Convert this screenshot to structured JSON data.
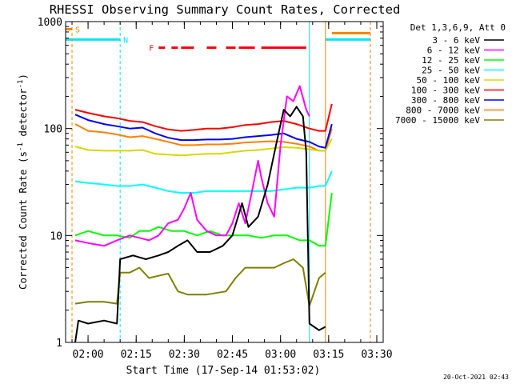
{
  "chart_data": {
    "type": "line",
    "title": "RHESSI Observing Summary Count Rates, Corrected",
    "xlabel": "Start Time (17-Sep-14 01:53:02)",
    "ylabel": "Corrected Count Rate (s⁻¹ detector⁻¹)",
    "ylabel_parts": [
      "Corrected Count Rate (s",
      "-1",
      " detector",
      "-1",
      ")"
    ],
    "y_scale": "log",
    "ylim": [
      1,
      1000
    ],
    "y_ticks": [
      1,
      10,
      100,
      1000
    ],
    "y_tick_labels": [
      "1",
      "10",
      "100",
      "1000"
    ],
    "xlim": [
      "01:53",
      "03:32"
    ],
    "x_ticks": [
      "02:00",
      "02:15",
      "02:30",
      "02:45",
      "03:00",
      "03:15",
      "03:30"
    ],
    "legend_title": "Det 1,3,6,9, Att 0",
    "legend_position": "right",
    "flags": [
      {
        "label": "S",
        "color": "#ff8000",
        "level": 850,
        "start": "01:53",
        "end": "01:55"
      },
      {
        "label": "N",
        "color": "#00e5ff",
        "level": 680,
        "start": "01:53",
        "end": "02:10"
      },
      {
        "label": "F",
        "color": "#ff0000",
        "level": 570,
        "segments": [
          [
            "02:22",
            "02:24"
          ],
          [
            "02:26",
            "02:28"
          ],
          [
            "02:29",
            "02:33"
          ],
          [
            "02:37",
            "02:40"
          ],
          [
            "02:43",
            "02:46"
          ],
          [
            "02:47",
            "02:52"
          ],
          [
            "02:54",
            "03:08"
          ]
        ]
      },
      {
        "label": "",
        "color": "#00e5ff",
        "level": 680,
        "start": "03:14",
        "end": "03:28"
      },
      {
        "label": "",
        "color": "#ff8000",
        "level": 780,
        "start": "03:16",
        "end": "03:28"
      }
    ],
    "vlines": [
      {
        "time": "01:55",
        "color": "#ff8000",
        "style": "dashed"
      },
      {
        "time": "02:10",
        "color": "#00e5ff",
        "style": "dashed"
      },
      {
        "time": "03:09",
        "color": "#00e5ff",
        "style": "solid"
      },
      {
        "time": "03:14",
        "color": "#ff8000",
        "style": "solid"
      },
      {
        "time": "03:28",
        "color": "#00e5ff",
        "style": "dashed"
      },
      {
        "time": "03:28",
        "color": "#ff8000",
        "style": "dashed"
      }
    ],
    "series": [
      {
        "name": "3 - 6 keV",
        "color": "#000000",
        "points": [
          [
            "01:56",
            1.0
          ],
          [
            "01:57",
            1.6
          ],
          [
            "02:00",
            1.5
          ],
          [
            "02:05",
            1.6
          ],
          [
            "02:09",
            1.5
          ],
          [
            "02:10",
            6
          ],
          [
            "02:14",
            6.5
          ],
          [
            "02:18",
            6
          ],
          [
            "02:22",
            6.5
          ],
          [
            "02:25",
            7
          ],
          [
            "02:28",
            8
          ],
          [
            "02:31",
            9
          ],
          [
            "02:34",
            7
          ],
          [
            "02:38",
            7
          ],
          [
            "02:42",
            8
          ],
          [
            "02:45",
            10
          ],
          [
            "02:48",
            20
          ],
          [
            "02:50",
            12
          ],
          [
            "02:53",
            15
          ],
          [
            "02:56",
            30
          ],
          [
            "02:59",
            80
          ],
          [
            "03:01",
            150
          ],
          [
            "03:03",
            130
          ],
          [
            "03:05",
            160
          ],
          [
            "03:07",
            130
          ],
          [
            "03:08",
            60
          ],
          [
            "03:09",
            1.5
          ],
          [
            "03:12",
            1.3
          ],
          [
            "03:14",
            1.4
          ]
        ]
      },
      {
        "name": "6 - 12 keV",
        "color": "#ff00ff",
        "points": [
          [
            "01:56",
            9
          ],
          [
            "02:00",
            8.5
          ],
          [
            "02:05",
            8
          ],
          [
            "02:09",
            9
          ],
          [
            "02:13",
            10
          ],
          [
            "02:16",
            9.5
          ],
          [
            "02:19",
            9
          ],
          [
            "02:22",
            10
          ],
          [
            "02:25",
            13
          ],
          [
            "02:28",
            14
          ],
          [
            "02:30",
            18
          ],
          [
            "02:32",
            25
          ],
          [
            "02:34",
            14
          ],
          [
            "02:37",
            11
          ],
          [
            "02:40",
            10
          ],
          [
            "02:43",
            10
          ],
          [
            "02:45",
            13
          ],
          [
            "02:47",
            20
          ],
          [
            "02:49",
            13
          ],
          [
            "02:51",
            25
          ],
          [
            "02:53",
            50
          ],
          [
            "02:54",
            35
          ],
          [
            "02:56",
            20
          ],
          [
            "02:58",
            15
          ],
          [
            "03:00",
            70
          ],
          [
            "03:02",
            200
          ],
          [
            "03:04",
            180
          ],
          [
            "03:06",
            250
          ],
          [
            "03:08",
            150
          ],
          [
            "03:09",
            130
          ]
        ]
      },
      {
        "name": "12 - 25 keV",
        "color": "#00ff00",
        "points": [
          [
            "01:56",
            10
          ],
          [
            "02:00",
            11
          ],
          [
            "02:05",
            10
          ],
          [
            "02:09",
            10
          ],
          [
            "02:13",
            9.5
          ],
          [
            "02:16",
            11
          ],
          [
            "02:19",
            11
          ],
          [
            "02:22",
            12
          ],
          [
            "02:26",
            11
          ],
          [
            "02:30",
            11
          ],
          [
            "02:34",
            10
          ],
          [
            "02:38",
            11
          ],
          [
            "02:42",
            10
          ],
          [
            "02:46",
            10
          ],
          [
            "02:50",
            10
          ],
          [
            "02:54",
            9.5
          ],
          [
            "02:58",
            10
          ],
          [
            "03:02",
            10
          ],
          [
            "03:06",
            9
          ],
          [
            "03:09",
            9
          ],
          [
            "03:12",
            8
          ],
          [
            "03:14",
            8
          ],
          [
            "03:16",
            25
          ]
        ]
      },
      {
        "name": "25 - 50 keV",
        "color": "#00ffff",
        "points": [
          [
            "01:56",
            32
          ],
          [
            "02:00",
            31
          ],
          [
            "02:05",
            30
          ],
          [
            "02:09",
            29
          ],
          [
            "02:13",
            29
          ],
          [
            "02:17",
            30
          ],
          [
            "02:21",
            28
          ],
          [
            "02:25",
            26
          ],
          [
            "02:29",
            25
          ],
          [
            "02:33",
            25
          ],
          [
            "02:37",
            26
          ],
          [
            "02:41",
            26
          ],
          [
            "02:45",
            26
          ],
          [
            "02:49",
            26
          ],
          [
            "02:53",
            26
          ],
          [
            "02:57",
            26
          ],
          [
            "03:01",
            27
          ],
          [
            "03:05",
            28
          ],
          [
            "03:09",
            28
          ],
          [
            "03:12",
            29
          ],
          [
            "03:14",
            29
          ],
          [
            "03:16",
            40
          ]
        ]
      },
      {
        "name": "50 - 100 keV",
        "color": "#d8d800",
        "points": [
          [
            "01:56",
            68
          ],
          [
            "02:00",
            63
          ],
          [
            "02:05",
            62
          ],
          [
            "02:09",
            62
          ],
          [
            "02:13",
            62
          ],
          [
            "02:17",
            63
          ],
          [
            "02:21",
            58
          ],
          [
            "02:25",
            57
          ],
          [
            "02:29",
            56
          ],
          [
            "02:33",
            57
          ],
          [
            "02:37",
            58
          ],
          [
            "02:41",
            58
          ],
          [
            "02:45",
            60
          ],
          [
            "02:49",
            62
          ],
          [
            "02:53",
            63
          ],
          [
            "02:57",
            65
          ],
          [
            "03:01",
            67
          ],
          [
            "03:05",
            66
          ],
          [
            "03:09",
            64
          ],
          [
            "03:12",
            62
          ],
          [
            "03:14",
            62
          ],
          [
            "03:16",
            80
          ]
        ]
      },
      {
        "name": "100 - 300 keV",
        "color": "#ff0000",
        "points": [
          [
            "01:56",
            150
          ],
          [
            "02:00",
            140
          ],
          [
            "02:05",
            130
          ],
          [
            "02:09",
            125
          ],
          [
            "02:13",
            118
          ],
          [
            "02:17",
            115
          ],
          [
            "02:21",
            105
          ],
          [
            "02:25",
            98
          ],
          [
            "02:29",
            95
          ],
          [
            "02:33",
            97
          ],
          [
            "02:37",
            100
          ],
          [
            "02:41",
            100
          ],
          [
            "02:45",
            103
          ],
          [
            "02:49",
            108
          ],
          [
            "02:53",
            110
          ],
          [
            "02:57",
            115
          ],
          [
            "03:01",
            118
          ],
          [
            "03:05",
            110
          ],
          [
            "03:09",
            100
          ],
          [
            "03:12",
            95
          ],
          [
            "03:14",
            95
          ],
          [
            "03:16",
            170
          ]
        ]
      },
      {
        "name": "300 - 800 keV",
        "color": "#0000ff",
        "points": [
          [
            "01:56",
            135
          ],
          [
            "02:00",
            120
          ],
          [
            "02:05",
            110
          ],
          [
            "02:09",
            105
          ],
          [
            "02:13",
            100
          ],
          [
            "02:17",
            102
          ],
          [
            "02:21",
            90
          ],
          [
            "02:25",
            82
          ],
          [
            "02:29",
            78
          ],
          [
            "02:33",
            78
          ],
          [
            "02:37",
            79
          ],
          [
            "02:41",
            79
          ],
          [
            "02:45",
            80
          ],
          [
            "02:49",
            83
          ],
          [
            "02:53",
            85
          ],
          [
            "02:57",
            87
          ],
          [
            "03:01",
            90
          ],
          [
            "03:05",
            80
          ],
          [
            "03:09",
            75
          ],
          [
            "03:12",
            68
          ],
          [
            "03:14",
            66
          ],
          [
            "03:16",
            110
          ]
        ]
      },
      {
        "name": "800 - 7000 keV",
        "color": "#ff8000",
        "points": [
          [
            "01:56",
            110
          ],
          [
            "02:00",
            95
          ],
          [
            "02:05",
            92
          ],
          [
            "02:09",
            88
          ],
          [
            "02:13",
            83
          ],
          [
            "02:17",
            85
          ],
          [
            "02:21",
            80
          ],
          [
            "02:25",
            75
          ],
          [
            "02:29",
            70
          ],
          [
            "02:33",
            70
          ],
          [
            "02:37",
            71
          ],
          [
            "02:41",
            71
          ],
          [
            "02:45",
            72
          ],
          [
            "02:49",
            74
          ],
          [
            "02:53",
            75
          ],
          [
            "02:57",
            76
          ],
          [
            "03:01",
            75
          ],
          [
            "03:05",
            72
          ],
          [
            "03:09",
            68
          ],
          [
            "03:12",
            62
          ],
          [
            "03:14",
            62
          ],
          [
            "03:16",
            100
          ]
        ]
      },
      {
        "name": "7000 - 15000 keV",
        "color": "#808000",
        "points": [
          [
            "01:56",
            2.3
          ],
          [
            "02:00",
            2.4
          ],
          [
            "02:05",
            2.4
          ],
          [
            "02:09",
            2.3
          ],
          [
            "02:10",
            4.5
          ],
          [
            "02:13",
            4.5
          ],
          [
            "02:16",
            5
          ],
          [
            "02:19",
            4
          ],
          [
            "02:22",
            4.2
          ],
          [
            "02:25",
            4.4
          ],
          [
            "02:28",
            3
          ],
          [
            "02:31",
            2.8
          ],
          [
            "02:34",
            2.8
          ],
          [
            "02:37",
            2.8
          ],
          [
            "02:40",
            2.9
          ],
          [
            "02:43",
            3
          ],
          [
            "02:46",
            4
          ],
          [
            "02:49",
            5
          ],
          [
            "02:52",
            5
          ],
          [
            "02:55",
            5
          ],
          [
            "02:58",
            5
          ],
          [
            "03:01",
            5.5
          ],
          [
            "03:04",
            6
          ],
          [
            "03:07",
            5
          ],
          [
            "03:09",
            2.2
          ],
          [
            "03:12",
            4
          ],
          [
            "03:14",
            4.5
          ]
        ]
      }
    ]
  },
  "footer": {
    "timestamp": "20-Oct-2021 02:43"
  }
}
